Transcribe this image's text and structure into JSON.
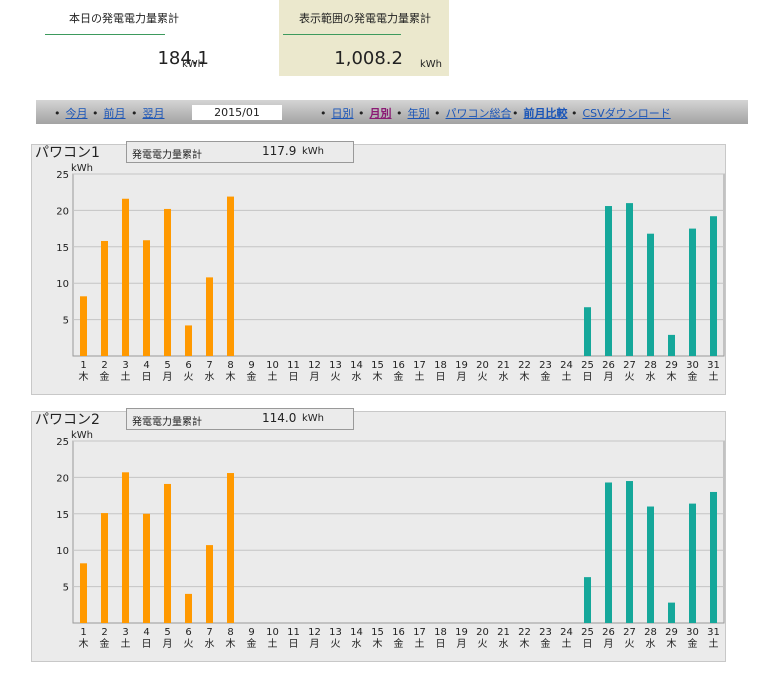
{
  "summary": {
    "today_label": "本日の発電電力量累計",
    "today_value": "184.1",
    "today_unit": "kWh",
    "range_label": "表示範囲の発電電力量累計",
    "range_value": "1,008.2",
    "range_unit": "kWh"
  },
  "nav": {
    "this_month": "今月",
    "prev_month": "前月",
    "next_month": "翌月",
    "current_period": "2015/01",
    "daily": "日別",
    "monthly": "月別",
    "yearly": "年別",
    "pcs_total": "パワコン総合",
    "prev_month_compare": "前月比較",
    "csv_download": "CSVダウンロード"
  },
  "panels": [
    {
      "title": "パワコン1",
      "cum_label": "発電電力量累計",
      "cum_value": "117.9",
      "cum_unit": "kWh"
    },
    {
      "title": "パワコン2",
      "cum_label": "発電電力量累計",
      "cum_value": "114.0",
      "cum_unit": "kWh"
    }
  ],
  "chart_data": [
    {
      "type": "bar",
      "ylabel": "kWh",
      "ylim": [
        0,
        25
      ],
      "yticks": [
        5,
        10,
        15,
        20,
        25
      ],
      "categories": [
        "1",
        "2",
        "3",
        "4",
        "5",
        "6",
        "7",
        "8",
        "9",
        "10",
        "11",
        "12",
        "13",
        "14",
        "15",
        "16",
        "17",
        "18",
        "19",
        "20",
        "21",
        "22",
        "23",
        "24",
        "25",
        "26",
        "27",
        "28",
        "29",
        "30",
        "31"
      ],
      "weekdays": [
        "木",
        "金",
        "土",
        "日",
        "月",
        "火",
        "水",
        "木",
        "金",
        "土",
        "日",
        "月",
        "火",
        "水",
        "木",
        "金",
        "土",
        "日",
        "月",
        "火",
        "水",
        "木",
        "金",
        "土",
        "日",
        "月",
        "火",
        "水",
        "木",
        "金",
        "土"
      ],
      "values": [
        8.2,
        15.8,
        21.6,
        15.9,
        20.2,
        4.2,
        10.8,
        21.9,
        0,
        0,
        0,
        0,
        0,
        0,
        0,
        0,
        0,
        0,
        0,
        0,
        0,
        0,
        0,
        0,
        6.7,
        20.6,
        21.0,
        16.8,
        2.9,
        17.5,
        19.2
      ],
      "colors": [
        "#ff9900",
        "#ff9900",
        "#ff9900",
        "#ff9900",
        "#ff9900",
        "#ff9900",
        "#ff9900",
        "#ff9900",
        "#ff9900",
        "#ff9900",
        "#ff9900",
        "#ff9900",
        "#ff9900",
        "#ff9900",
        "#ff9900",
        "#ff9900",
        "#ff9900",
        "#ff9900",
        "#ff9900",
        "#ff9900",
        "#ff9900",
        "#ff9900",
        "#ff9900",
        "#ff9900",
        "#15a79a",
        "#15a79a",
        "#15a79a",
        "#15a79a",
        "#15a79a",
        "#15a79a",
        "#15a79a"
      ],
      "grid": true
    },
    {
      "type": "bar",
      "ylabel": "kWh",
      "ylim": [
        0,
        25
      ],
      "yticks": [
        5,
        10,
        15,
        20,
        25
      ],
      "categories": [
        "1",
        "2",
        "3",
        "4",
        "5",
        "6",
        "7",
        "8",
        "9",
        "10",
        "11",
        "12",
        "13",
        "14",
        "15",
        "16",
        "17",
        "18",
        "19",
        "20",
        "21",
        "22",
        "23",
        "24",
        "25",
        "26",
        "27",
        "28",
        "29",
        "30",
        "31"
      ],
      "weekdays": [
        "木",
        "金",
        "土",
        "日",
        "月",
        "火",
        "水",
        "木",
        "金",
        "土",
        "日",
        "月",
        "火",
        "水",
        "木",
        "金",
        "土",
        "日",
        "月",
        "火",
        "水",
        "木",
        "金",
        "土",
        "日",
        "月",
        "火",
        "水",
        "木",
        "金",
        "土"
      ],
      "values": [
        8.2,
        15.1,
        20.7,
        15.0,
        19.1,
        4.0,
        10.7,
        20.6,
        0,
        0,
        0,
        0,
        0,
        0,
        0,
        0,
        0,
        0,
        0,
        0,
        0,
        0,
        0,
        0,
        6.3,
        19.3,
        19.5,
        16.0,
        2.8,
        16.4,
        18.0
      ],
      "colors": [
        "#ff9900",
        "#ff9900",
        "#ff9900",
        "#ff9900",
        "#ff9900",
        "#ff9900",
        "#ff9900",
        "#ff9900",
        "#ff9900",
        "#ff9900",
        "#ff9900",
        "#ff9900",
        "#ff9900",
        "#ff9900",
        "#ff9900",
        "#ff9900",
        "#ff9900",
        "#ff9900",
        "#ff9900",
        "#ff9900",
        "#ff9900",
        "#ff9900",
        "#ff9900",
        "#ff9900",
        "#15a79a",
        "#15a79a",
        "#15a79a",
        "#15a79a",
        "#15a79a",
        "#15a79a",
        "#15a79a"
      ],
      "grid": true
    }
  ]
}
